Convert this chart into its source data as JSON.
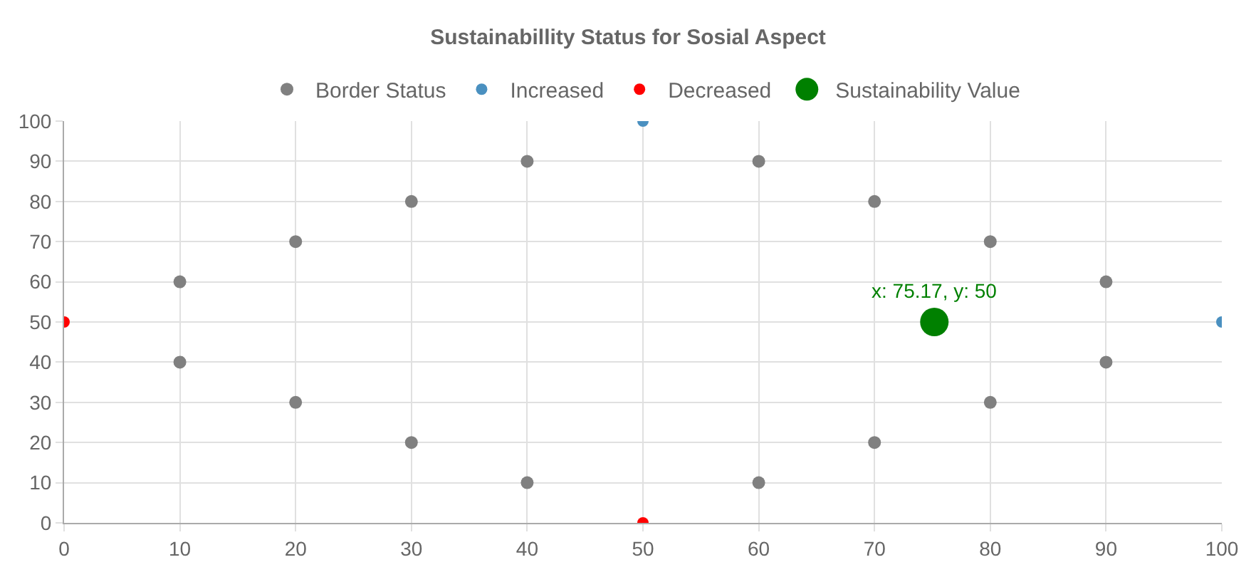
{
  "chart_data": {
    "type": "scatter",
    "title": "Sustainabillity Status for Sosial Aspect",
    "series": [
      {
        "name": "Border Status",
        "color": "#808080",
        "x": [
          10,
          20,
          30,
          40,
          60,
          70,
          80,
          90,
          10,
          20,
          30,
          40,
          60,
          70,
          80,
          90
        ],
        "values": [
          60,
          70,
          80,
          90,
          90,
          80,
          70,
          60,
          40,
          30,
          20,
          10,
          10,
          20,
          30,
          40
        ]
      },
      {
        "name": "Increased",
        "color": "#4a90c0",
        "x": [
          50,
          100
        ],
        "values": [
          100,
          50
        ]
      },
      {
        "name": "Decreased",
        "color": "#ff0000",
        "x": [
          0,
          50
        ],
        "values": [
          50,
          0
        ]
      },
      {
        "name": "Sustainability Value",
        "color": "#008000",
        "x": [
          75.17
        ],
        "values": [
          50
        ]
      }
    ],
    "annotations": [
      {
        "text": "x: 75.17, y: 50",
        "x": 75.17,
        "y": 50
      }
    ],
    "xlim": [
      0,
      100
    ],
    "xticks": [
      0,
      10,
      20,
      30,
      40,
      50,
      60,
      70,
      80,
      90,
      100
    ],
    "ylim": [
      0,
      100
    ],
    "yticks": [
      0,
      10,
      20,
      30,
      40,
      50,
      60,
      70,
      80,
      90,
      100
    ],
    "grid": true,
    "legend": "top",
    "marker": "circle"
  }
}
